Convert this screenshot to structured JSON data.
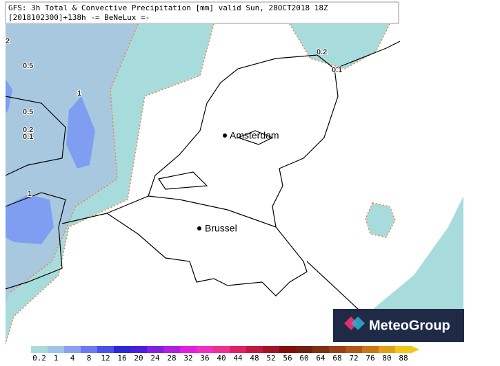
{
  "header": {
    "line1": "GFS: 3h Total & Convective Precipitation [mm] valid Sun, 28OCT2018 18Z",
    "line2": "[2018102300]+138h -= BeNeLux =-"
  },
  "map": {
    "cities": [
      {
        "label": "Amsterdam"
      },
      {
        "label": "Brussel"
      }
    ],
    "contour_labels": [
      "2",
      "0.5",
      "1",
      "0.5",
      "0.2",
      "0.1",
      "1",
      "0.2",
      "0.1"
    ]
  },
  "logo": {
    "text": "MeteoGroup"
  },
  "colorbar": {
    "labels": [
      "0.2",
      "1",
      "4",
      "8",
      "12",
      "16",
      "20",
      "24",
      "28",
      "32",
      "36",
      "40",
      "44",
      "48",
      "52",
      "56",
      "60",
      "64",
      "68",
      "72",
      "76",
      "80",
      "88"
    ],
    "colors": [
      "#a8dcdc",
      "#a0c4e8",
      "#8ca0f0",
      "#6e78f0",
      "#4a50e8",
      "#2828d8",
      "#4a1ee0",
      "#8020e0",
      "#b020e0",
      "#e020e0",
      "#f030c0",
      "#f03090",
      "#e02060",
      "#c01840",
      "#a01428",
      "#801010",
      "#702010",
      "#803010",
      "#984018",
      "#b05818",
      "#c87818",
      "#e0a018",
      "#f0c818"
    ]
  }
}
